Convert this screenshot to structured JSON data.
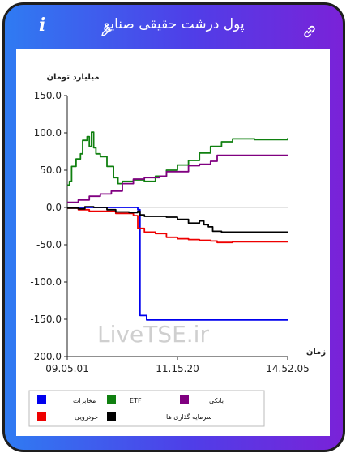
{
  "header": {
    "title": "پول درشت حقیقی صنایع",
    "info_icon": "i",
    "edit_icon": "pencil-icon",
    "link_icon": "link-icon"
  },
  "chart_data": {
    "type": "line",
    "ylabel": "میلیارد تومان",
    "xlabel": "زمان",
    "ylim": [
      -200,
      150
    ],
    "yticks": [
      "150.0",
      "100.0",
      "50.0",
      "0.0",
      "-50.0",
      "-100.0",
      "-150.0",
      "-200.0"
    ],
    "xticks": [
      "09.05.01",
      "11.15.20",
      "14.52.05"
    ],
    "watermark": "LiveTSE.ir",
    "series": [
      {
        "name": "مخابرات",
        "color": "#0000ee",
        "values": [
          [
            0,
            0
          ],
          [
            0.31,
            0
          ],
          [
            0.32,
            -3
          ],
          [
            0.33,
            -145
          ],
          [
            0.36,
            -151
          ],
          [
            1,
            -151
          ]
        ]
      },
      {
        "name": "ETF",
        "color": "#108010",
        "values": [
          [
            0,
            30
          ],
          [
            0.01,
            35
          ],
          [
            0.02,
            55
          ],
          [
            0.04,
            65
          ],
          [
            0.06,
            72
          ],
          [
            0.07,
            90
          ],
          [
            0.09,
            95
          ],
          [
            0.1,
            82
          ],
          [
            0.11,
            101
          ],
          [
            0.12,
            80
          ],
          [
            0.13,
            72
          ],
          [
            0.15,
            68
          ],
          [
            0.18,
            55
          ],
          [
            0.21,
            40
          ],
          [
            0.23,
            32
          ],
          [
            0.25,
            35
          ],
          [
            0.3,
            37
          ],
          [
            0.35,
            35
          ],
          [
            0.4,
            42
          ],
          [
            0.45,
            50
          ],
          [
            0.5,
            57
          ],
          [
            0.55,
            63
          ],
          [
            0.6,
            73
          ],
          [
            0.65,
            82
          ],
          [
            0.7,
            88
          ],
          [
            0.75,
            92
          ],
          [
            0.85,
            91
          ],
          [
            0.95,
            91
          ],
          [
            1,
            93
          ]
        ]
      },
      {
        "name": "بانکی",
        "color": "#800080",
        "values": [
          [
            0,
            7
          ],
          [
            0.05,
            10
          ],
          [
            0.1,
            15
          ],
          [
            0.15,
            18
          ],
          [
            0.2,
            22
          ],
          [
            0.25,
            32
          ],
          [
            0.3,
            38
          ],
          [
            0.35,
            40
          ],
          [
            0.42,
            42
          ],
          [
            0.45,
            48
          ],
          [
            0.55,
            56
          ],
          [
            0.6,
            58
          ],
          [
            0.65,
            62
          ],
          [
            0.68,
            70
          ],
          [
            0.8,
            70
          ],
          [
            1,
            70
          ]
        ]
      },
      {
        "name": "خودرویی",
        "color": "#ee0000",
        "values": [
          [
            0,
            -1
          ],
          [
            0.05,
            -3
          ],
          [
            0.1,
            -5
          ],
          [
            0.18,
            -5
          ],
          [
            0.22,
            -8
          ],
          [
            0.3,
            -11
          ],
          [
            0.32,
            -28
          ],
          [
            0.35,
            -33
          ],
          [
            0.4,
            -35
          ],
          [
            0.45,
            -40
          ],
          [
            0.5,
            -42
          ],
          [
            0.55,
            -43
          ],
          [
            0.6,
            -44
          ],
          [
            0.65,
            -45
          ],
          [
            0.68,
            -47
          ],
          [
            0.75,
            -46
          ],
          [
            1,
            -46
          ]
        ]
      },
      {
        "name": "سرمایه گذاری ها",
        "color": "#000000",
        "values": [
          [
            0,
            -1
          ],
          [
            0.05,
            -2
          ],
          [
            0.08,
            1
          ],
          [
            0.12,
            0
          ],
          [
            0.18,
            -3
          ],
          [
            0.22,
            -6
          ],
          [
            0.28,
            -7
          ],
          [
            0.32,
            -5
          ],
          [
            0.33,
            -10
          ],
          [
            0.35,
            -12
          ],
          [
            0.45,
            -13
          ],
          [
            0.5,
            -16
          ],
          [
            0.55,
            -21
          ],
          [
            0.6,
            -18
          ],
          [
            0.62,
            -23
          ],
          [
            0.64,
            -26
          ],
          [
            0.66,
            -32
          ],
          [
            0.7,
            -33
          ],
          [
            1,
            -33
          ]
        ]
      }
    ],
    "legend": [
      {
        "label": "مخابرات",
        "color": "#0000ee"
      },
      {
        "label": "ETF",
        "color": "#108010"
      },
      {
        "label": "بانکی",
        "color": "#800080"
      },
      {
        "label": "خودرویی",
        "color": "#ee0000"
      },
      {
        "label": "سرمایه گذاری ها",
        "color": "#000000"
      }
    ]
  }
}
